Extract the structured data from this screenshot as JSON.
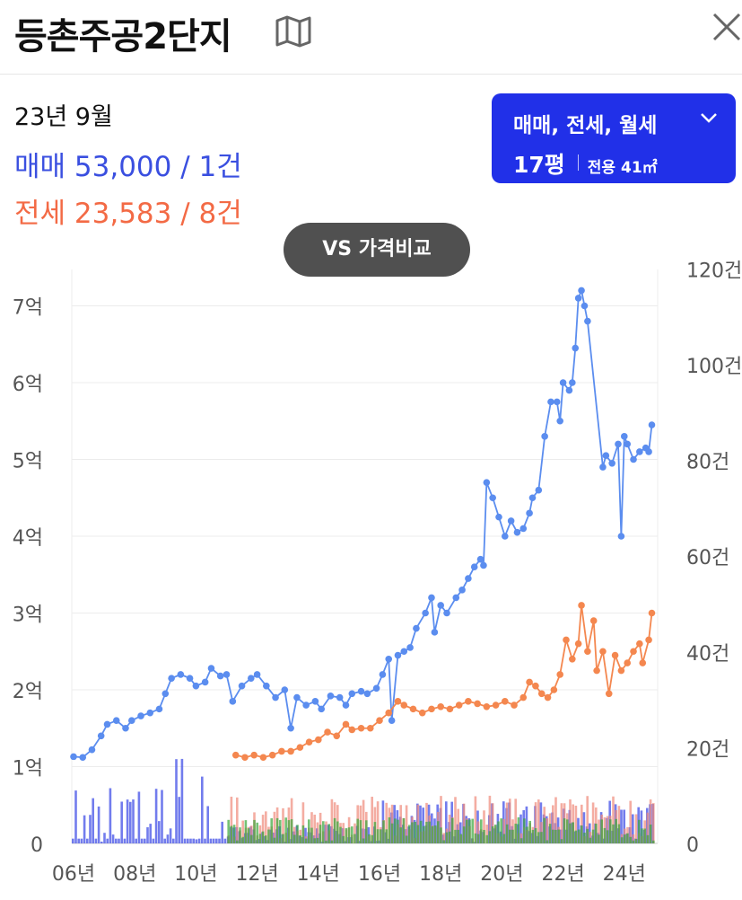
{
  "header": {
    "title": "등촌주공2단지"
  },
  "summary": {
    "date": "23년 9월",
    "sale_label": "매매",
    "sale_value": "53,000 / 1건",
    "jeonse_label": "전세",
    "jeonse_value": "23,583 / 8건"
  },
  "filter": {
    "types": "매매, 전세, 월세",
    "pyeong": "17평",
    "area": "전용 41㎡"
  },
  "vs_button": "VS 가격비교",
  "colors": {
    "sale": "#5b8def",
    "jeonse": "#f4874f",
    "volume_sale": "#4f5be8",
    "volume_jeonse": "#f08a7a",
    "volume_rent": "#3aa63a",
    "button": "#2130e8"
  },
  "icons": {
    "map": "map-icon",
    "close": "close-icon",
    "chevron": "chevron-down-icon"
  },
  "chart_data": {
    "type": "line",
    "x_labels": [
      "06년",
      "08년",
      "10년",
      "12년",
      "14년",
      "16년",
      "18년",
      "20년",
      "22년",
      "24년"
    ],
    "y_left_labels": [
      "0",
      "1억",
      "2억",
      "3억",
      "4억",
      "5억",
      "6억",
      "7억"
    ],
    "y_right_labels": [
      "0",
      "20건",
      "40건",
      "60건",
      "80건",
      "100건",
      "120건"
    ],
    "ylim_left_eok": [
      0,
      7.5
    ],
    "ylim_right_count": [
      0,
      120
    ],
    "grid": true,
    "series": [
      {
        "name": "매매",
        "color": "#5b8def",
        "points": [
          [
            2006.0,
            1.13
          ],
          [
            2006.3,
            1.12
          ],
          [
            2006.6,
            1.22
          ],
          [
            2006.9,
            1.4
          ],
          [
            2007.1,
            1.55
          ],
          [
            2007.4,
            1.6
          ],
          [
            2007.7,
            1.5
          ],
          [
            2007.9,
            1.6
          ],
          [
            2008.2,
            1.66
          ],
          [
            2008.5,
            1.7
          ],
          [
            2008.8,
            1.75
          ],
          [
            2009.0,
            1.95
          ],
          [
            2009.2,
            2.15
          ],
          [
            2009.5,
            2.2
          ],
          [
            2009.8,
            2.15
          ],
          [
            2010.0,
            2.05
          ],
          [
            2010.3,
            2.1
          ],
          [
            2010.5,
            2.28
          ],
          [
            2010.8,
            2.18
          ],
          [
            2011.0,
            2.2
          ],
          [
            2011.2,
            1.85
          ],
          [
            2011.5,
            2.05
          ],
          [
            2011.8,
            2.15
          ],
          [
            2012.0,
            2.2
          ],
          [
            2012.3,
            2.05
          ],
          [
            2012.6,
            1.9
          ],
          [
            2012.9,
            2.0
          ],
          [
            2013.1,
            1.5
          ],
          [
            2013.3,
            1.9
          ],
          [
            2013.6,
            1.8
          ],
          [
            2013.9,
            1.85
          ],
          [
            2014.1,
            1.75
          ],
          [
            2014.4,
            1.92
          ],
          [
            2014.7,
            1.9
          ],
          [
            2014.9,
            1.8
          ],
          [
            2015.1,
            1.95
          ],
          [
            2015.4,
            1.98
          ],
          [
            2015.6,
            1.95
          ],
          [
            2015.9,
            2.02
          ],
          [
            2016.1,
            2.2
          ],
          [
            2016.3,
            2.4
          ],
          [
            2016.4,
            1.6
          ],
          [
            2016.6,
            2.45
          ],
          [
            2016.8,
            2.5
          ],
          [
            2017.0,
            2.55
          ],
          [
            2017.2,
            2.8
          ],
          [
            2017.5,
            3.0
          ],
          [
            2017.7,
            3.2
          ],
          [
            2017.8,
            2.75
          ],
          [
            2018.0,
            3.1
          ],
          [
            2018.2,
            3.0
          ],
          [
            2018.5,
            3.2
          ],
          [
            2018.7,
            3.3
          ],
          [
            2018.9,
            3.45
          ],
          [
            2019.1,
            3.6
          ],
          [
            2019.3,
            3.7
          ],
          [
            2019.4,
            3.62
          ],
          [
            2019.5,
            4.7
          ],
          [
            2019.7,
            4.5
          ],
          [
            2019.9,
            4.25
          ],
          [
            2020.1,
            4.0
          ],
          [
            2020.3,
            4.2
          ],
          [
            2020.5,
            4.05
          ],
          [
            2020.7,
            4.1
          ],
          [
            2020.9,
            4.3
          ],
          [
            2021.0,
            4.5
          ],
          [
            2021.2,
            4.6
          ],
          [
            2021.4,
            5.3
          ],
          [
            2021.6,
            5.75
          ],
          [
            2021.8,
            5.75
          ],
          [
            2021.9,
            5.5
          ],
          [
            2022.0,
            6.0
          ],
          [
            2022.2,
            5.9
          ],
          [
            2022.3,
            6.0
          ],
          [
            2022.4,
            6.45
          ],
          [
            2022.5,
            7.1
          ],
          [
            2022.6,
            7.2
          ],
          [
            2022.7,
            7.0
          ],
          [
            2022.8,
            6.8
          ],
          [
            2023.3,
            4.9
          ],
          [
            2023.4,
            5.05
          ],
          [
            2023.6,
            4.95
          ],
          [
            2023.8,
            5.2
          ],
          [
            2023.9,
            4.0
          ],
          [
            2024.0,
            5.3
          ],
          [
            2024.1,
            5.2
          ],
          [
            2024.3,
            5.0
          ],
          [
            2024.5,
            5.1
          ],
          [
            2024.7,
            5.15
          ],
          [
            2024.8,
            5.1
          ],
          [
            2024.9,
            5.45
          ]
        ]
      },
      {
        "name": "전세",
        "color": "#f4874f",
        "points": [
          [
            2011.3,
            1.15
          ],
          [
            2011.6,
            1.12
          ],
          [
            2011.9,
            1.15
          ],
          [
            2012.2,
            1.12
          ],
          [
            2012.5,
            1.15
          ],
          [
            2012.8,
            1.2
          ],
          [
            2013.1,
            1.2
          ],
          [
            2013.4,
            1.25
          ],
          [
            2013.7,
            1.32
          ],
          [
            2014.0,
            1.35
          ],
          [
            2014.3,
            1.45
          ],
          [
            2014.6,
            1.4
          ],
          [
            2014.9,
            1.55
          ],
          [
            2015.1,
            1.48
          ],
          [
            2015.4,
            1.5
          ],
          [
            2015.7,
            1.5
          ],
          [
            2016.0,
            1.6
          ],
          [
            2016.3,
            1.7
          ],
          [
            2016.6,
            1.85
          ],
          [
            2016.8,
            1.8
          ],
          [
            2017.1,
            1.75
          ],
          [
            2017.4,
            1.7
          ],
          [
            2017.7,
            1.75
          ],
          [
            2018.0,
            1.78
          ],
          [
            2018.3,
            1.75
          ],
          [
            2018.6,
            1.8
          ],
          [
            2018.9,
            1.85
          ],
          [
            2019.2,
            1.82
          ],
          [
            2019.5,
            1.78
          ],
          [
            2019.8,
            1.8
          ],
          [
            2020.1,
            1.85
          ],
          [
            2020.4,
            1.8
          ],
          [
            2020.7,
            1.9
          ],
          [
            2020.9,
            2.1
          ],
          [
            2021.1,
            2.05
          ],
          [
            2021.3,
            1.95
          ],
          [
            2021.5,
            1.9
          ],
          [
            2021.7,
            2.0
          ],
          [
            2021.9,
            2.2
          ],
          [
            2022.1,
            2.65
          ],
          [
            2022.3,
            2.4
          ],
          [
            2022.5,
            2.6
          ],
          [
            2022.6,
            3.1
          ],
          [
            2022.8,
            2.5
          ],
          [
            2023.0,
            2.9
          ],
          [
            2023.1,
            2.25
          ],
          [
            2023.3,
            2.5
          ],
          [
            2023.5,
            1.95
          ],
          [
            2023.7,
            2.45
          ],
          [
            2023.9,
            2.25
          ],
          [
            2024.1,
            2.35
          ],
          [
            2024.3,
            2.5
          ],
          [
            2024.5,
            2.6
          ],
          [
            2024.6,
            2.35
          ],
          [
            2024.8,
            2.65
          ],
          [
            2024.9,
            3.0
          ]
        ]
      }
    ]
  }
}
